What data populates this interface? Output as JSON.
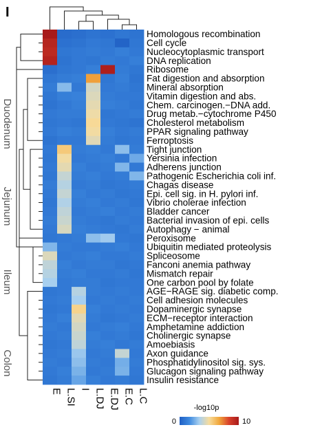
{
  "chart_data": {
    "type": "heatmap",
    "panel_label": "I",
    "columns": [
      "E",
      "L.SI",
      "I",
      "L.DJ",
      "E.DJ",
      "E.C",
      "L.C"
    ],
    "rows": [
      "Homologous recombination",
      "Cell cycle",
      "Nucleocytoplasmic transport",
      "DNA replication",
      "Ribosome",
      "Fat digestion and absorption",
      "Mineral absorption",
      "Vitamin digestion and abs.",
      "Chem. carcinogen.−DNA add.",
      "Drug metab.−cytochrome P450",
      "Cholesterol metabolism",
      "PPAR signaling pathway",
      "Ferroptosis",
      "Tight junction",
      "Yersinia infection",
      "Adherens junction",
      "Pathogenic Escherichia coli inf.",
      "Chagas disease",
      "Epi. cell sig. in H. pylori inf.",
      "Vibrio cholerae infection",
      "Bladder cancer",
      "Bacterial invasion of epi. cells",
      "Autophagy − animal",
      "Peroxisome",
      "Ubiquitin mediated proteolysis",
      "Spliceosome",
      "Fanconi anemia pathway",
      "Mismatch repair",
      "One carbon pool by folate",
      "AGE−RAGE sig. diabetic comp.",
      "Cell adhesion molecules",
      "Dopaminergic synapse",
      "ECM−receptor interaction",
      "Amphetamine addiction",
      "Cholinergic synapse",
      "Amoebiasis",
      "Axon guidance",
      "Phosphatidylinositol sig. sys.",
      "Glucagon signaling pathway",
      "Insulin resistance"
    ],
    "values": [
      [
        10,
        0.5,
        0.6,
        0.8,
        0.7,
        0.9,
        0.8
      ],
      [
        9.5,
        0.7,
        0.8,
        1.0,
        0.9,
        0.2,
        0.9
      ],
      [
        9.3,
        0.9,
        1.0,
        1.1,
        1.0,
        1.2,
        1.0
      ],
      [
        9.6,
        0.8,
        1.0,
        0.9,
        1.1,
        1.0,
        1.2
      ],
      [
        0.6,
        0.9,
        1.0,
        1.2,
        9.8,
        1.1,
        0.9
      ],
      [
        0.9,
        1.1,
        1.2,
        6.8,
        0.9,
        1.2,
        0.8
      ],
      [
        1.1,
        2.8,
        1.0,
        4.2,
        1.0,
        1.1,
        0.9
      ],
      [
        0.9,
        1.2,
        1.3,
        4.4,
        1.1,
        1.0,
        1.0
      ],
      [
        0.8,
        1.0,
        1.2,
        4.6,
        1.2,
        1.1,
        0.9
      ],
      [
        1.0,
        1.1,
        1.1,
        4.8,
        0.9,
        1.0,
        1.1
      ],
      [
        0.9,
        1.0,
        0.9,
        5.1,
        1.0,
        0.9,
        0.8
      ],
      [
        1.0,
        1.2,
        1.1,
        4.9,
        1.2,
        1.0,
        1.1
      ],
      [
        0.8,
        1.0,
        1.0,
        4.5,
        1.1,
        0.9,
        1.0
      ],
      [
        1.0,
        5.6,
        1.1,
        1.2,
        1.0,
        2.9,
        1.1
      ],
      [
        0.9,
        4.9,
        1.0,
        1.1,
        1.2,
        1.0,
        2.4
      ],
      [
        1.0,
        4.6,
        1.2,
        1.0,
        1.1,
        2.7,
        1.0
      ],
      [
        0.9,
        3.9,
        1.1,
        1.2,
        1.0,
        1.1,
        2.7
      ],
      [
        1.1,
        3.6,
        1.0,
        1.1,
        0.9,
        1.0,
        1.1
      ],
      [
        1.0,
        3.9,
        1.2,
        1.0,
        1.1,
        0.9,
        1.0
      ],
      [
        0.9,
        3.5,
        1.1,
        1.2,
        1.0,
        1.1,
        0.9
      ],
      [
        1.0,
        3.8,
        1.0,
        1.1,
        1.2,
        1.0,
        1.1
      ],
      [
        1.1,
        4.0,
        1.1,
        1.0,
        0.9,
        1.1,
        1.0
      ],
      [
        1.0,
        4.3,
        1.2,
        1.1,
        1.0,
        0.9,
        1.1
      ],
      [
        0.9,
        1.0,
        1.1,
        2.9,
        3.2,
        1.0,
        0.9
      ],
      [
        2.7,
        1.1,
        1.0,
        1.0,
        1.1,
        1.2,
        1.0
      ],
      [
        4.4,
        1.0,
        1.1,
        1.2,
        1.0,
        1.0,
        1.1
      ],
      [
        3.8,
        1.2,
        1.0,
        1.1,
        1.1,
        0.9,
        1.0
      ],
      [
        3.6,
        1.1,
        1.2,
        1.0,
        1.0,
        1.1,
        0.9
      ],
      [
        3.3,
        1.0,
        1.1,
        1.1,
        0.9,
        1.0,
        1.0
      ],
      [
        0.9,
        1.0,
        3.6,
        1.1,
        1.0,
        1.1,
        1.0
      ],
      [
        1.0,
        1.1,
        3.3,
        1.0,
        1.1,
        1.0,
        1.1
      ],
      [
        0.9,
        1.0,
        5.3,
        1.2,
        1.0,
        1.1,
        1.0
      ],
      [
        1.0,
        1.2,
        4.5,
        1.1,
        0.9,
        1.0,
        1.1
      ],
      [
        1.1,
        1.0,
        4.2,
        1.0,
        1.1,
        1.2,
        1.0
      ],
      [
        1.0,
        1.1,
        4.0,
        1.2,
        1.0,
        1.1,
        0.9
      ],
      [
        0.9,
        1.0,
        3.8,
        1.1,
        1.2,
        1.0,
        1.1
      ],
      [
        1.0,
        1.1,
        3.1,
        1.0,
        1.1,
        3.9,
        1.0
      ],
      [
        1.1,
        1.0,
        2.9,
        1.1,
        1.0,
        2.5,
        1.1
      ],
      [
        1.0,
        1.2,
        2.6,
        1.0,
        1.1,
        2.6,
        1.0
      ],
      [
        0.9,
        1.1,
        2.3,
        1.2,
        1.0,
        1.1,
        0.9
      ]
    ],
    "side_labels": [
      "Duodenum",
      "Jejunum",
      "Ileum",
      "Colon"
    ],
    "legend": {
      "title": "-log10p",
      "min": 0,
      "max": 10,
      "colors": [
        "#1f5fc4",
        "#3f8be0",
        "#a9d0ef",
        "#f7dc9d",
        "#f1a83c",
        "#d8412b",
        "#a81a1a"
      ]
    }
  }
}
